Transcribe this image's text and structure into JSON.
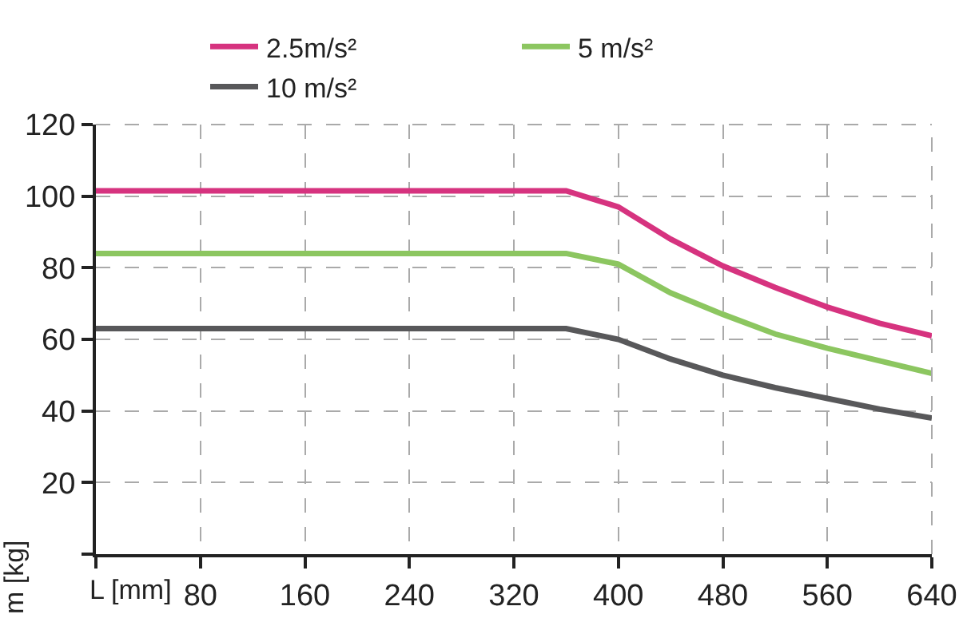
{
  "chart_data": {
    "type": "line",
    "xlabel": "L [mm]",
    "ylabel": "m [kg]",
    "x": [
      0,
      360,
      400,
      440,
      480,
      520,
      560,
      600,
      640
    ],
    "series": [
      {
        "name": "2.5m/s²",
        "color": "#d6337f",
        "values": [
          101.5,
          101.5,
          97,
          88,
          80.5,
          74.5,
          69,
          64.5,
          61
        ]
      },
      {
        "name": "5 m/s²",
        "color": "#8cc660",
        "values": [
          84,
          84,
          81,
          73,
          67,
          61.5,
          57.5,
          54,
          50.5
        ]
      },
      {
        "name": "10 m/s²",
        "color": "#58585a",
        "values": [
          63,
          63,
          60,
          54.5,
          50,
          46.5,
          43.5,
          40.5,
          38
        ]
      }
    ],
    "xlim": [
      0,
      640
    ],
    "xticks": [
      {
        "value": 0,
        "label": null
      },
      80,
      160,
      240,
      320,
      400,
      480,
      560,
      640
    ],
    "ylim": [
      0,
      120
    ],
    "yticks": [
      {
        "value": 0,
        "label": null
      },
      20,
      40,
      60,
      80,
      100,
      120
    ],
    "grid": true,
    "legend": "top",
    "marker": "none",
    "line_style": "solid"
  }
}
